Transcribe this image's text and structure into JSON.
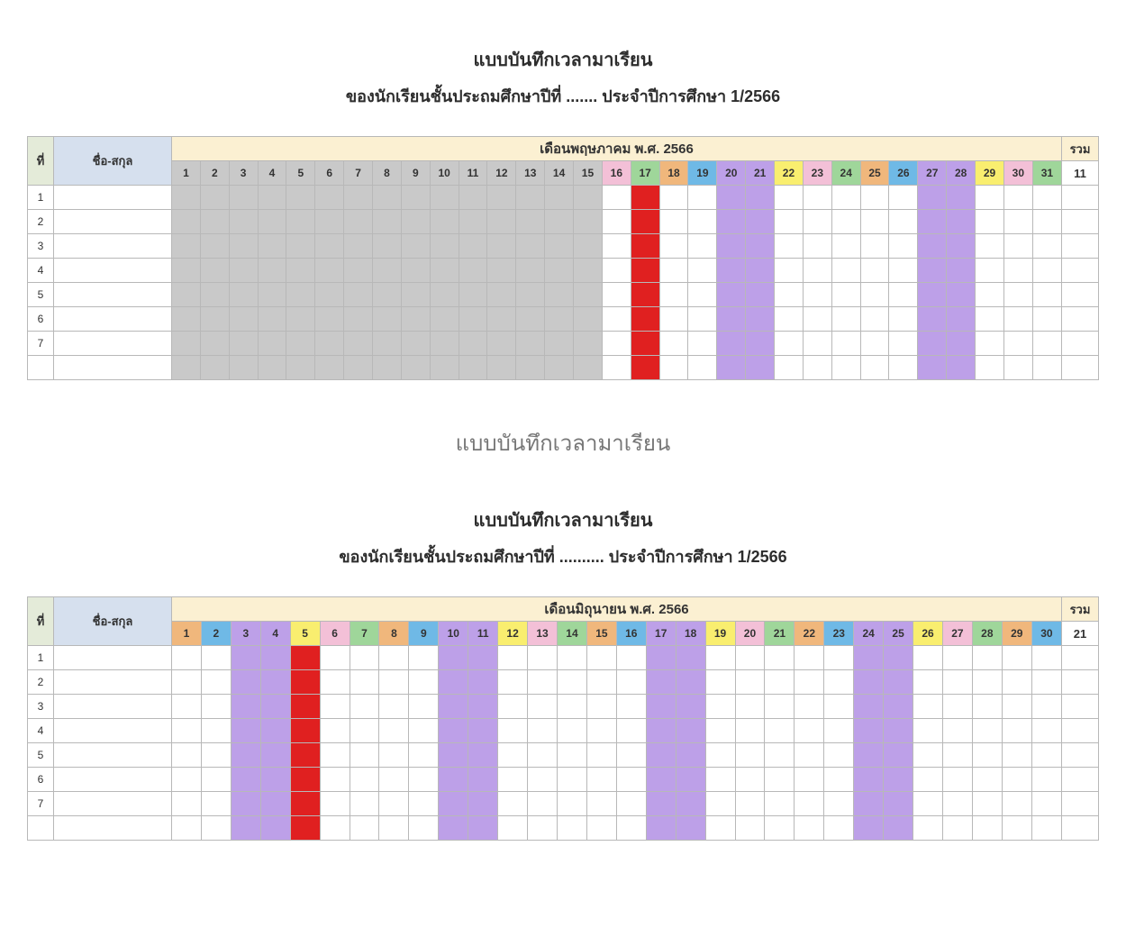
{
  "colors": {
    "grey": "#c9c9c9",
    "red": "#e02020",
    "purple": "#bda0e8",
    "pink": "#f3c0d7",
    "green": "#9fd69a",
    "orange": "#f0b77c",
    "blue": "#6fb9e6",
    "yellow": "#f9ee6f",
    "white": "#ffffff"
  },
  "labels": {
    "title": "แบบบันทึกเวลามาเรียน",
    "mid": "แบบบันทึกเวลามาเรียน",
    "col_no": "ที่",
    "col_name": "ชื่อ-สกุล",
    "col_sum": "รวม"
  },
  "sections": [
    {
      "subtitle": "ของนักเรียนชั้นประถมศึกษาปีที่ ....... ประจำปีการศึกษา 1/2566",
      "month_header": "เดือนพฤษภาคม พ.ศ. 2566",
      "sum_value": "11",
      "num_rows": 8,
      "days": [
        {
          "n": "1",
          "hdr": "grey",
          "body": "grey"
        },
        {
          "n": "2",
          "hdr": "grey",
          "body": "grey"
        },
        {
          "n": "3",
          "hdr": "grey",
          "body": "grey"
        },
        {
          "n": "4",
          "hdr": "grey",
          "body": "grey"
        },
        {
          "n": "5",
          "hdr": "grey",
          "body": "grey"
        },
        {
          "n": "6",
          "hdr": "grey",
          "body": "grey"
        },
        {
          "n": "7",
          "hdr": "grey",
          "body": "grey"
        },
        {
          "n": "8",
          "hdr": "grey",
          "body": "grey"
        },
        {
          "n": "9",
          "hdr": "grey",
          "body": "grey"
        },
        {
          "n": "10",
          "hdr": "grey",
          "body": "grey"
        },
        {
          "n": "11",
          "hdr": "grey",
          "body": "grey"
        },
        {
          "n": "12",
          "hdr": "grey",
          "body": "grey"
        },
        {
          "n": "13",
          "hdr": "grey",
          "body": "grey"
        },
        {
          "n": "14",
          "hdr": "grey",
          "body": "grey"
        },
        {
          "n": "15",
          "hdr": "grey",
          "body": "grey"
        },
        {
          "n": "16",
          "hdr": "pink",
          "body": "white"
        },
        {
          "n": "17",
          "hdr": "green",
          "body": "red"
        },
        {
          "n": "18",
          "hdr": "orange",
          "body": "white"
        },
        {
          "n": "19",
          "hdr": "blue",
          "body": "white"
        },
        {
          "n": "20",
          "hdr": "purple",
          "body": "purple"
        },
        {
          "n": "21",
          "hdr": "purple",
          "body": "purple"
        },
        {
          "n": "22",
          "hdr": "yellow",
          "body": "white"
        },
        {
          "n": "23",
          "hdr": "pink",
          "body": "white"
        },
        {
          "n": "24",
          "hdr": "green",
          "body": "white"
        },
        {
          "n": "25",
          "hdr": "orange",
          "body": "white"
        },
        {
          "n": "26",
          "hdr": "blue",
          "body": "white"
        },
        {
          "n": "27",
          "hdr": "purple",
          "body": "purple"
        },
        {
          "n": "28",
          "hdr": "purple",
          "body": "purple"
        },
        {
          "n": "29",
          "hdr": "yellow",
          "body": "white"
        },
        {
          "n": "30",
          "hdr": "pink",
          "body": "white"
        },
        {
          "n": "31",
          "hdr": "green",
          "body": "white"
        }
      ]
    },
    {
      "subtitle": "ของนักเรียนชั้นประถมศึกษาปีที่ .......... ประจำปีการศึกษา 1/2566",
      "month_header": "เดือนมิถุนายน พ.ศ. 2566",
      "sum_value": "21",
      "num_rows": 8,
      "days": [
        {
          "n": "1",
          "hdr": "orange",
          "body": "white"
        },
        {
          "n": "2",
          "hdr": "blue",
          "body": "white"
        },
        {
          "n": "3",
          "hdr": "purple",
          "body": "purple"
        },
        {
          "n": "4",
          "hdr": "purple",
          "body": "purple"
        },
        {
          "n": "5",
          "hdr": "yellow",
          "body": "red"
        },
        {
          "n": "6",
          "hdr": "pink",
          "body": "white"
        },
        {
          "n": "7",
          "hdr": "green",
          "body": "white"
        },
        {
          "n": "8",
          "hdr": "orange",
          "body": "white"
        },
        {
          "n": "9",
          "hdr": "blue",
          "body": "white"
        },
        {
          "n": "10",
          "hdr": "purple",
          "body": "purple"
        },
        {
          "n": "11",
          "hdr": "purple",
          "body": "purple"
        },
        {
          "n": "12",
          "hdr": "yellow",
          "body": "white"
        },
        {
          "n": "13",
          "hdr": "pink",
          "body": "white"
        },
        {
          "n": "14",
          "hdr": "green",
          "body": "white"
        },
        {
          "n": "15",
          "hdr": "orange",
          "body": "white"
        },
        {
          "n": "16",
          "hdr": "blue",
          "body": "white"
        },
        {
          "n": "17",
          "hdr": "purple",
          "body": "purple"
        },
        {
          "n": "18",
          "hdr": "purple",
          "body": "purple"
        },
        {
          "n": "19",
          "hdr": "yellow",
          "body": "white"
        },
        {
          "n": "20",
          "hdr": "pink",
          "body": "white"
        },
        {
          "n": "21",
          "hdr": "green",
          "body": "white"
        },
        {
          "n": "22",
          "hdr": "orange",
          "body": "white"
        },
        {
          "n": "23",
          "hdr": "blue",
          "body": "white"
        },
        {
          "n": "24",
          "hdr": "purple",
          "body": "purple"
        },
        {
          "n": "25",
          "hdr": "purple",
          "body": "purple"
        },
        {
          "n": "26",
          "hdr": "yellow",
          "body": "white"
        },
        {
          "n": "27",
          "hdr": "pink",
          "body": "white"
        },
        {
          "n": "28",
          "hdr": "green",
          "body": "white"
        },
        {
          "n": "29",
          "hdr": "orange",
          "body": "white"
        },
        {
          "n": "30",
          "hdr": "blue",
          "body": "white"
        }
      ]
    }
  ]
}
